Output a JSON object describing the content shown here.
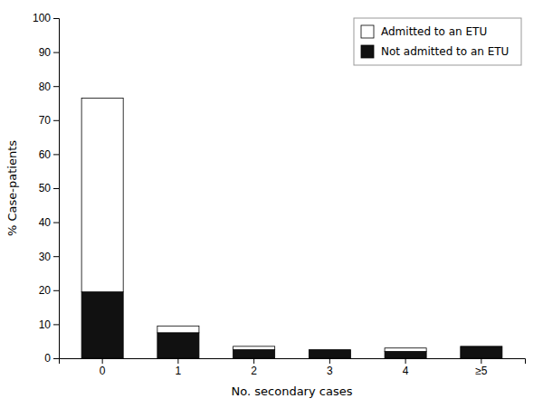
{
  "chart_data": {
    "type": "bar",
    "stacked": true,
    "categories": [
      "0",
      "1",
      "2",
      "3",
      "4",
      "≥5"
    ],
    "series": [
      {
        "name": "Not admitted to an ETU",
        "color": "#111111",
        "values": [
          19.5,
          7.5,
          2.5,
          2.5,
          2.0,
          3.5
        ]
      },
      {
        "name": "Admitted to an ETU",
        "color": "#ffffff",
        "values": [
          57.0,
          2.0,
          1.0,
          0.0,
          1.0,
          0.0
        ]
      }
    ],
    "xlabel": "No. secondary cases",
    "ylabel": "% Case-patients",
    "ylim": [
      0,
      100
    ],
    "yticks": [
      0,
      10,
      20,
      30,
      40,
      50,
      60,
      70,
      80,
      90,
      100
    ],
    "grid": false,
    "legend": "upper right"
  }
}
